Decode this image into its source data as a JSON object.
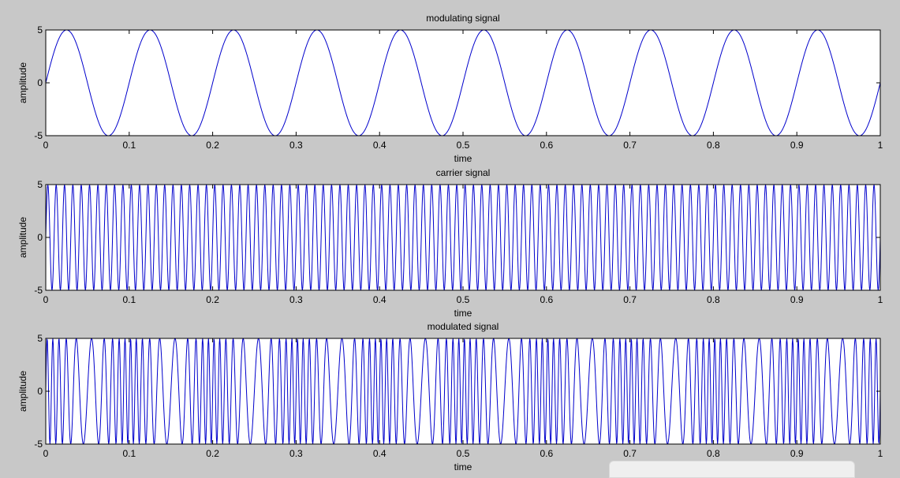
{
  "window": {
    "background": "#c8c8c8"
  },
  "colors": {
    "line": "#0000cc",
    "axes_bg": "#ffffff",
    "axes_edge": "#000000",
    "text": "#000000"
  },
  "chart_data": [
    {
      "type": "line",
      "title": "modulating signal",
      "xlabel": "time",
      "ylabel": "amplitude",
      "xlim": [
        0,
        1
      ],
      "ylim": [
        -5,
        5
      ],
      "xticks": [
        "0",
        "0.1",
        "0.2",
        "0.3",
        "0.4",
        "0.5",
        "0.6",
        "0.7",
        "0.8",
        "0.9",
        "1"
      ],
      "yticks": [
        "-5",
        "0",
        "5"
      ],
      "grid": false,
      "series": [
        {
          "function": "sine",
          "amplitude": 5,
          "frequency": 10,
          "sample_count": 2000,
          "x_range": [
            0,
            1
          ]
        }
      ]
    },
    {
      "type": "line",
      "title": "carrier signal",
      "xlabel": "time",
      "ylabel": "amplitude",
      "xlim": [
        0,
        1
      ],
      "ylim": [
        -5,
        5
      ],
      "xticks": [
        "0",
        "0.1",
        "0.2",
        "0.3",
        "0.4",
        "0.5",
        "0.6",
        "0.7",
        "0.8",
        "0.9",
        "1"
      ],
      "yticks": [
        "-5",
        "0",
        "5"
      ],
      "grid": false,
      "series": [
        {
          "function": "sine",
          "amplitude": 5,
          "frequency": 100,
          "sample_count": 2000,
          "x_range": [
            0,
            1
          ]
        }
      ]
    },
    {
      "type": "line",
      "title": "modulated signal",
      "xlabel": "time",
      "ylabel": "amplitude",
      "xlim": [
        0,
        1
      ],
      "ylim": [
        -5,
        5
      ],
      "xticks": [
        "0",
        "0.1",
        "0.2",
        "0.3",
        "0.4",
        "0.5",
        "0.6",
        "0.7",
        "0.8",
        "0.9",
        "1"
      ],
      "yticks": [
        "-5",
        "0",
        "5"
      ],
      "grid": false,
      "series": [
        {
          "function": "fm_sine",
          "amplitude": 5,
          "carrier_frequency": 100,
          "message_frequency": 10,
          "modulation_index": 5,
          "sample_count": 2000,
          "x_range": [
            0,
            1
          ]
        }
      ]
    }
  ]
}
